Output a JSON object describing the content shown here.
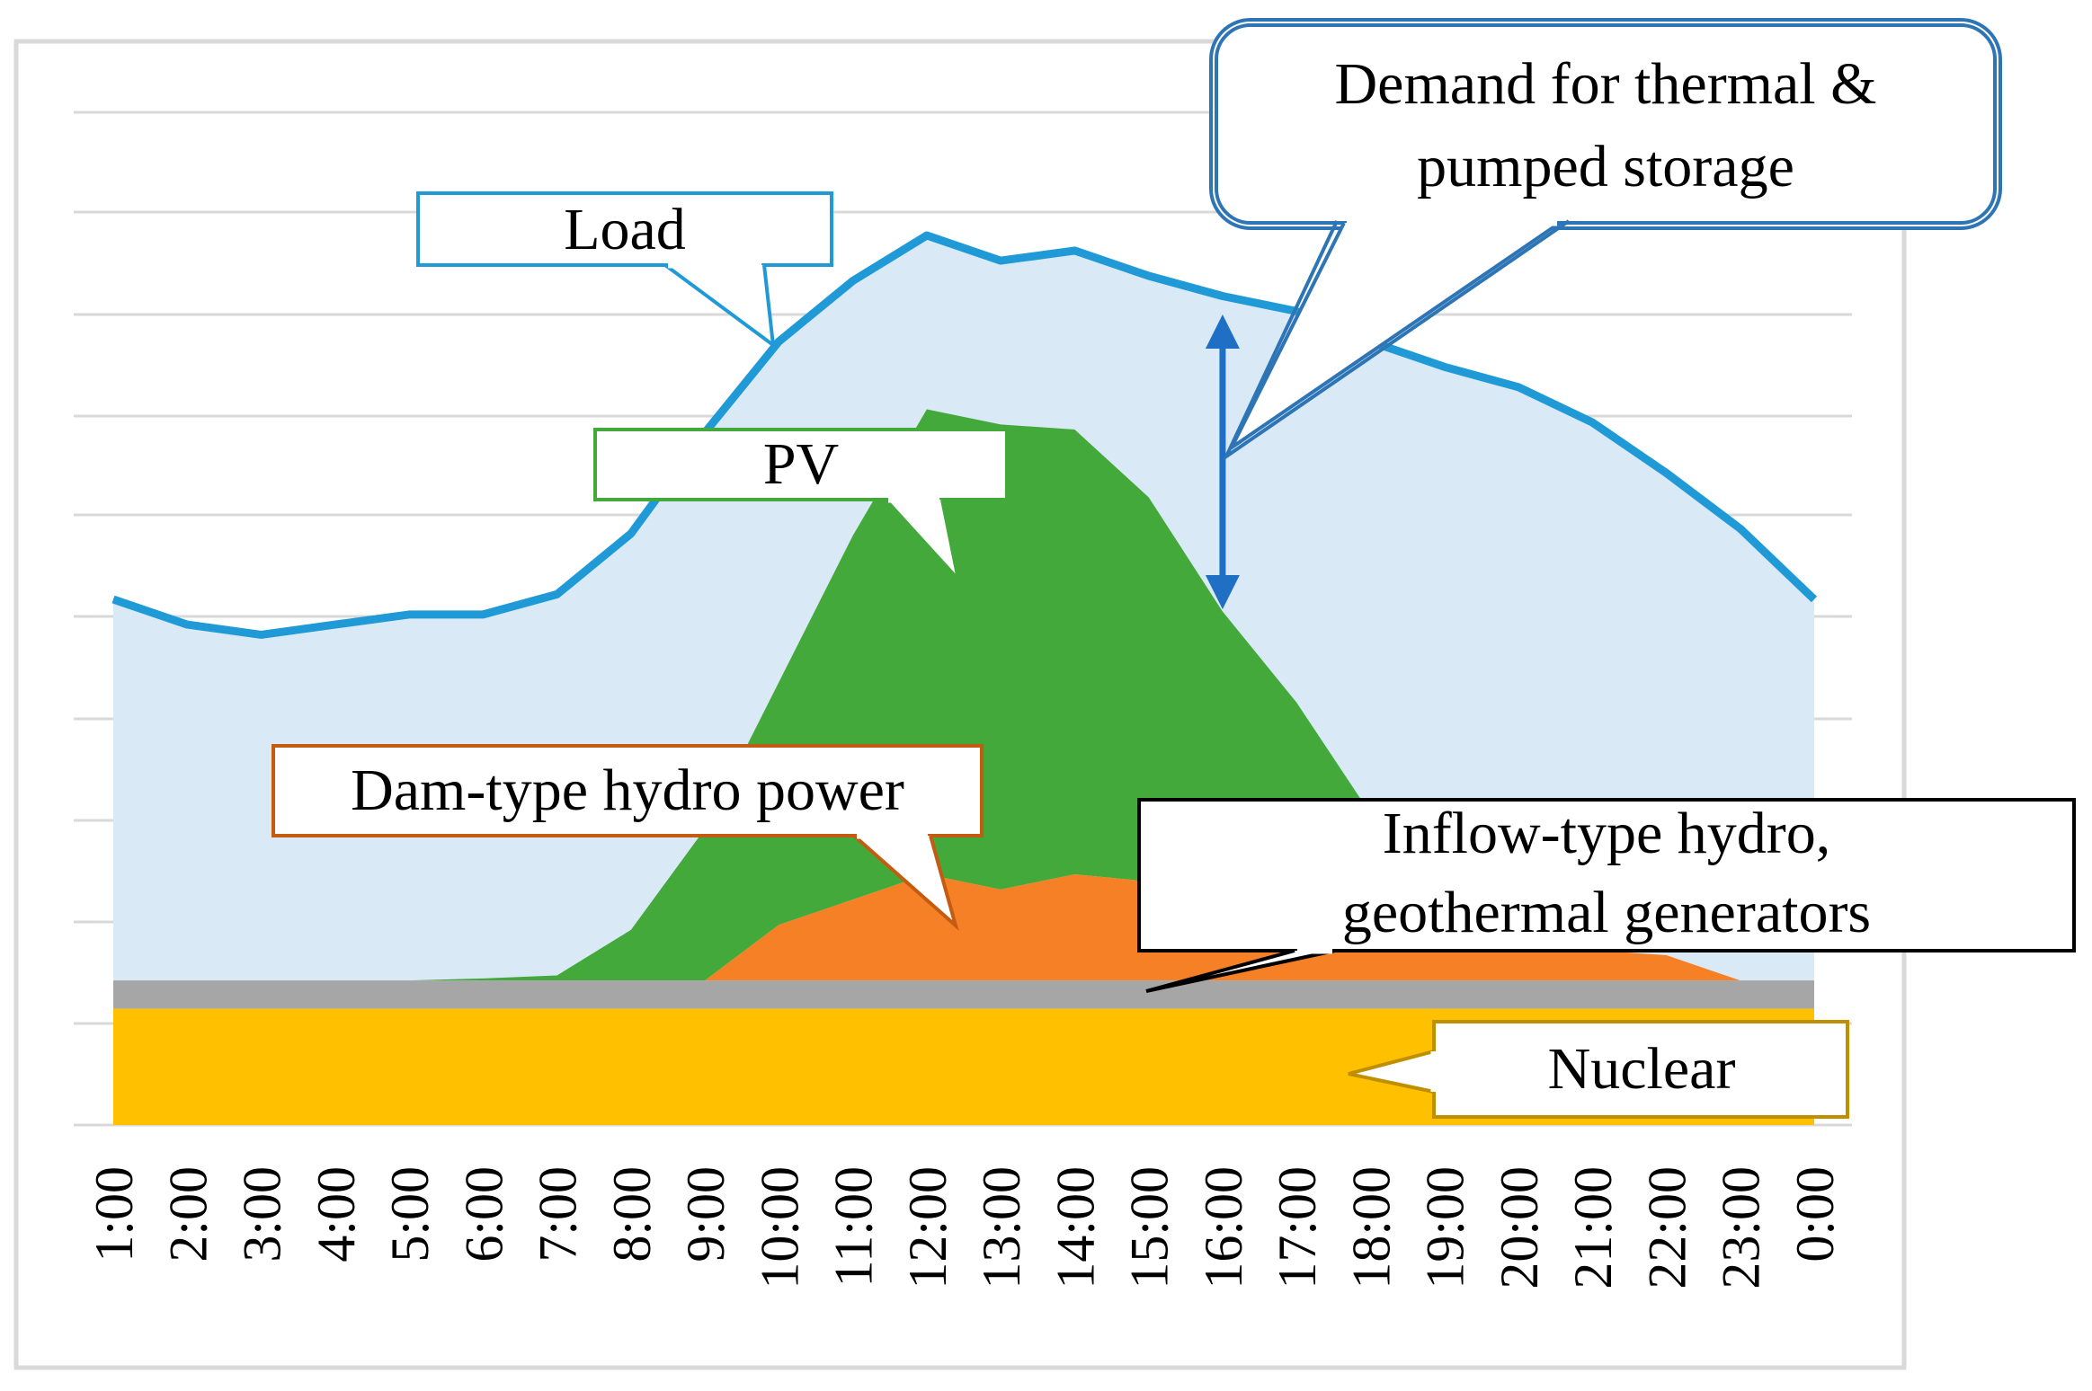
{
  "chart_data": {
    "type": "area",
    "title": "",
    "xlabel": "",
    "ylabel": "",
    "ylim": [
      0,
      10
    ],
    "grid": true,
    "categories": [
      "1:00",
      "2:00",
      "3:00",
      "4:00",
      "5:00",
      "6:00",
      "7:00",
      "8:00",
      "9:00",
      "10:00",
      "11:00",
      "12:00",
      "13:00",
      "14:00",
      "15:00",
      "16:00",
      "17:00",
      "18:00",
      "19:00",
      "20:00",
      "21:00",
      "22:00",
      "23:00",
      "0:00"
    ],
    "series": [
      {
        "name": "Nuclear",
        "kind": "area",
        "color": "#ffc000",
        "values": [
          1.15,
          1.15,
          1.15,
          1.15,
          1.15,
          1.15,
          1.15,
          1.15,
          1.15,
          1.15,
          1.15,
          1.15,
          1.15,
          1.15,
          1.15,
          1.15,
          1.15,
          1.15,
          1.15,
          1.15,
          1.15,
          1.15,
          1.15,
          1.15
        ]
      },
      {
        "name": "Inflow-type hydro, geothermal generators",
        "kind": "area",
        "color": "#a6a6a6",
        "values": [
          0.28,
          0.28,
          0.28,
          0.28,
          0.28,
          0.28,
          0.28,
          0.28,
          0.28,
          0.28,
          0.28,
          0.28,
          0.28,
          0.28,
          0.28,
          0.28,
          0.28,
          0.28,
          0.28,
          0.28,
          0.28,
          0.28,
          0.28,
          0.28
        ]
      },
      {
        "name": "Dam-type hydro power",
        "kind": "area",
        "color": "#f58025",
        "values": [
          0,
          0,
          0,
          0,
          0,
          0,
          0,
          0,
          0,
          0.55,
          0.8,
          1.05,
          0.9,
          1.05,
          0.98,
          0.8,
          0.55,
          0.35,
          0.3,
          0.3,
          0.3,
          0.25,
          0,
          0
        ]
      },
      {
        "name": "PV",
        "kind": "area",
        "color": "#43a93b",
        "values": [
          0,
          0,
          0,
          0,
          0,
          0.02,
          0.05,
          0.5,
          1.5,
          2.4,
          3.6,
          4.6,
          4.6,
          4.4,
          3.8,
          2.85,
          2.2,
          1.3,
          0.5,
          0,
          0,
          0,
          0,
          0
        ]
      },
      {
        "name": "Load",
        "kind": "line",
        "color": "#1f9ad6",
        "fill": "#dae9f6",
        "values": [
          5.2,
          4.95,
          4.85,
          4.95,
          5.05,
          5.05,
          5.25,
          5.85,
          6.85,
          7.75,
          8.35,
          8.8,
          8.55,
          8.65,
          8.4,
          8.2,
          8.05,
          7.75,
          7.5,
          7.3,
          6.95,
          6.45,
          5.9,
          5.2
        ]
      }
    ],
    "annotations": [
      {
        "text_lines": [
          "Load"
        ],
        "target": "Load",
        "border": "#1f9ad6"
      },
      {
        "text_lines": [
          "PV"
        ],
        "target": "PV",
        "border": "#43a93b"
      },
      {
        "text_lines": [
          "Demand for thermal &",
          "pumped storage"
        ],
        "target": "gap between Load and PV",
        "border": "#2e75b6"
      },
      {
        "text_lines": [
          "Dam-type hydro power"
        ],
        "target": "Dam-type hydro power",
        "border": "#c55a11"
      },
      {
        "text_lines": [
          "Inflow-type hydro,",
          "geothermal generators"
        ],
        "target": "Inflow-type hydro, geothermal generators",
        "border": "#000000"
      },
      {
        "text_lines": [
          "Nuclear"
        ],
        "target": "Nuclear",
        "border": "#bf8f00"
      }
    ]
  }
}
